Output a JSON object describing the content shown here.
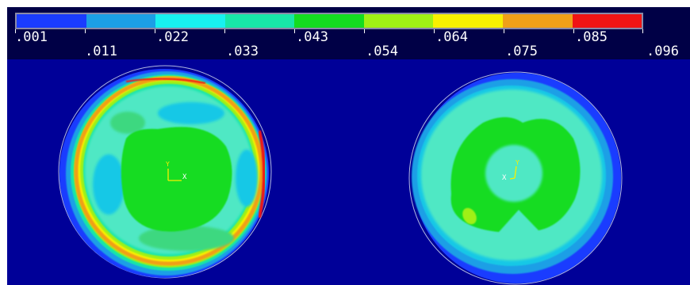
{
  "legend": {
    "colors": [
      "#1a3cff",
      "#1c9fe6",
      "#18f0f0",
      "#18e6a8",
      "#14dc20",
      "#a0f014",
      "#f8f000",
      "#f0a018",
      "#f01414"
    ],
    "ticks_top": [
      ".001",
      ".022",
      ".043",
      ".064",
      ".085"
    ],
    "ticks_bottom": [
      ".011",
      ".033",
      ".054",
      ".075",
      ".096"
    ]
  },
  "models": [
    {
      "triad_axes": [
        "Y",
        "X"
      ]
    },
    {
      "triad_axes": [
        "Y",
        "X"
      ]
    }
  ]
}
